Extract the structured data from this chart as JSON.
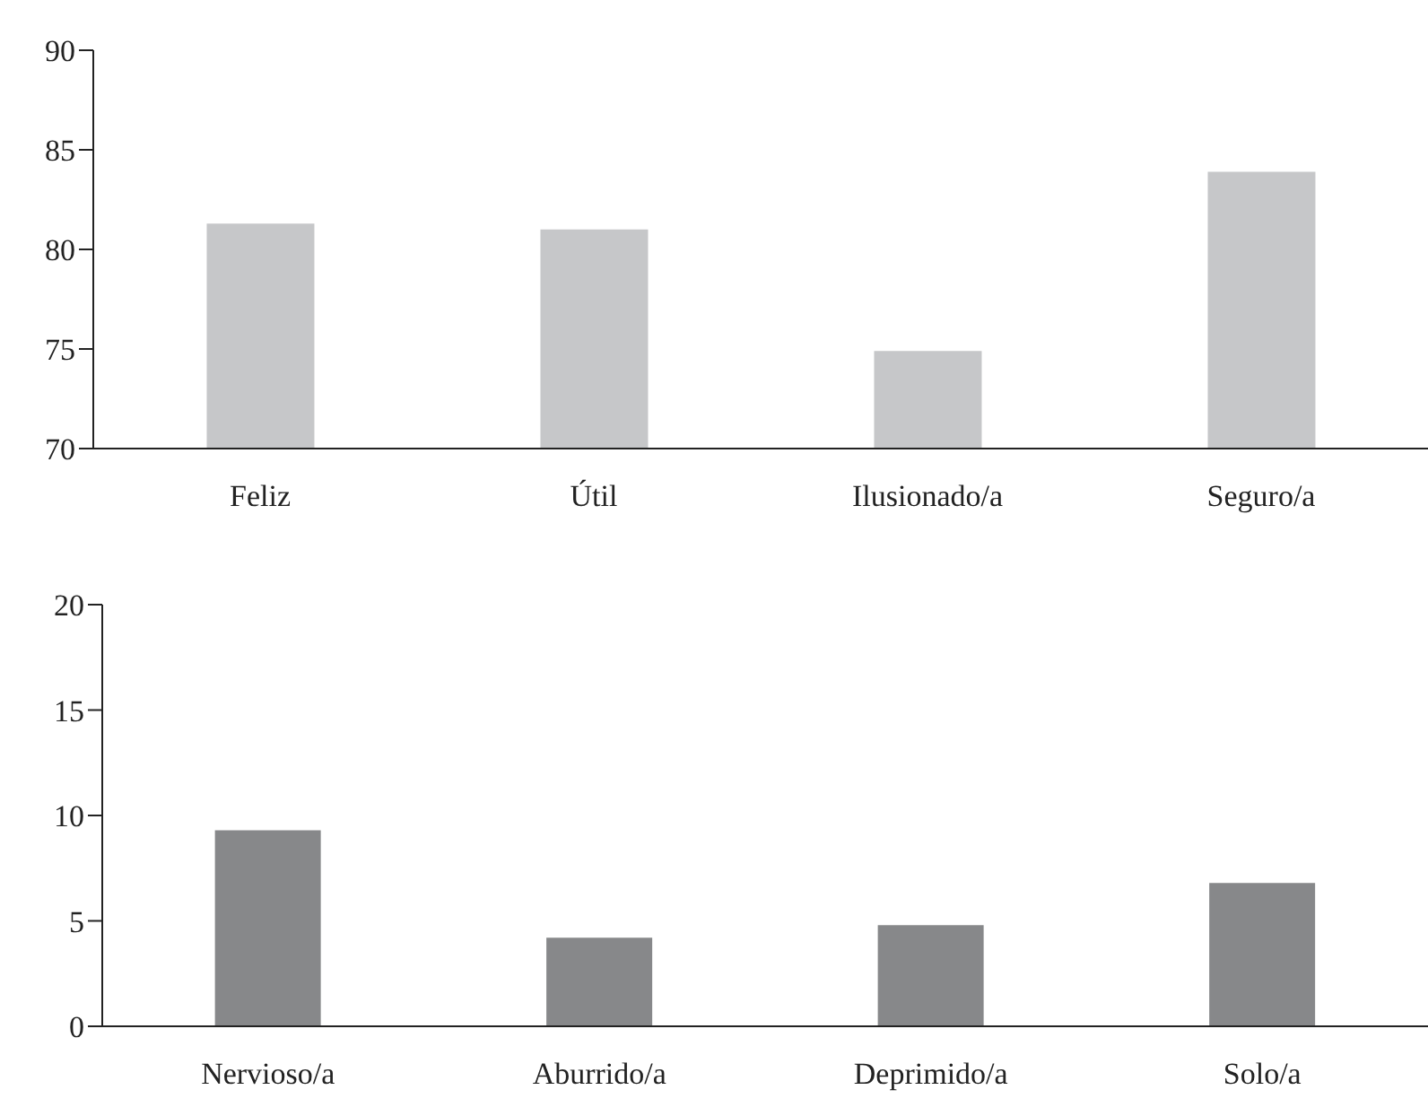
{
  "chart_data": [
    {
      "type": "bar",
      "categories": [
        "Feliz",
        "Útil",
        "Ilusionado/a",
        "Seguro/a"
      ],
      "values": [
        81.3,
        81.0,
        74.9,
        83.9
      ],
      "color": "#c6c7c9",
      "ylim": [
        70,
        90
      ],
      "yticks": [
        70,
        75,
        80,
        85,
        90
      ],
      "grid": false,
      "legend": false
    },
    {
      "type": "bar",
      "categories": [
        "Nervioso/a",
        "Aburrido/a",
        "Deprimido/a",
        "Solo/a"
      ],
      "values": [
        9.3,
        4.2,
        4.8,
        6.8
      ],
      "color": "#87888a",
      "ylim": [
        0,
        20
      ],
      "yticks": [
        0,
        5,
        10,
        15,
        20
      ],
      "grid": false,
      "legend": false
    }
  ]
}
